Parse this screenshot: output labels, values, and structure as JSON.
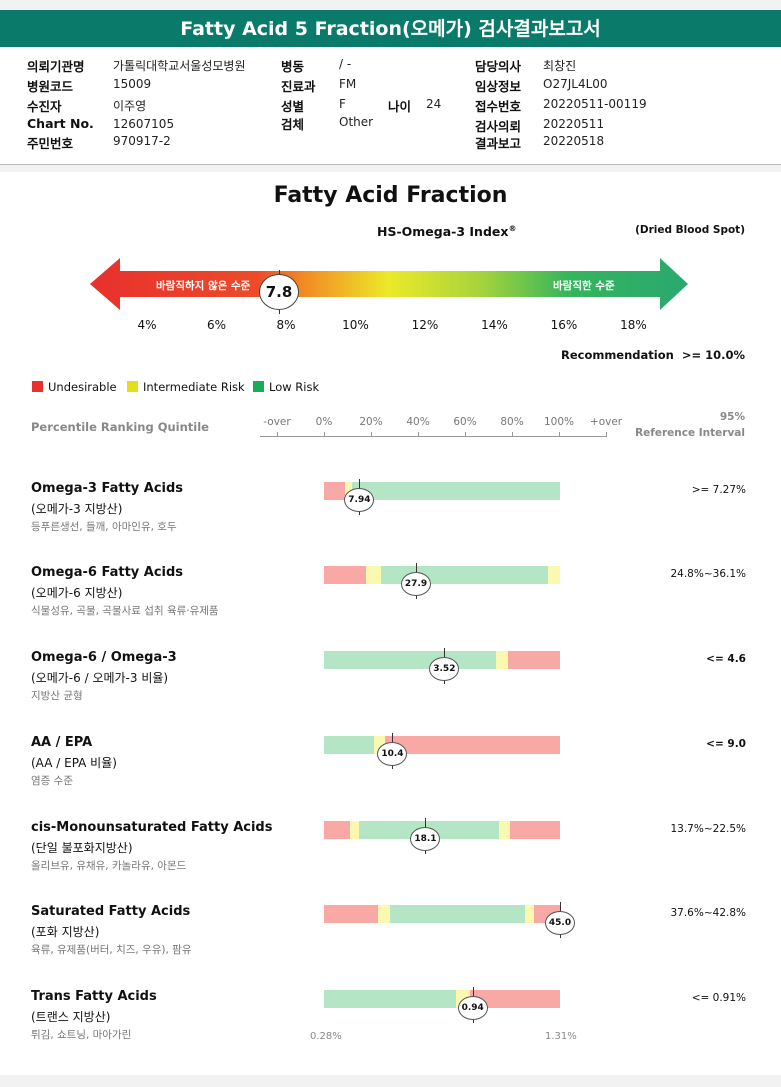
{
  "header": {
    "title": "Fatty Acid 5 Fraction(오메가) 검사결과보고서"
  },
  "info": [
    {
      "label": "의뢰기관명",
      "value": "가톨릭대학교서울성모병원"
    },
    {
      "label": "병원코드",
      "value": "15009"
    },
    {
      "label": "수진자",
      "value": "이주영"
    },
    {
      "label": "Chart No.",
      "value": "12607105"
    },
    {
      "label": "주민번호",
      "value": "970917-2"
    },
    {
      "label": "병동",
      "value": "/ -"
    },
    {
      "label": "진료과",
      "value": "FM"
    },
    {
      "label": "성별",
      "value": "F"
    },
    {
      "label": "나이",
      "value": "24"
    },
    {
      "label": "검체",
      "value": "Other"
    },
    {
      "label": "담당의사",
      "value": "최창진"
    },
    {
      "label": "임상정보",
      "value": "O27JL4L00"
    },
    {
      "label": "접수번호",
      "value": "20220511-00119"
    },
    {
      "label": "검사의뢰",
      "value": "20220511"
    },
    {
      "label": "결과보고",
      "value": "20220518"
    }
  ],
  "section": {
    "title": "Fatty Acid Fraction",
    "index_name": "HS-Omega-3 Index",
    "index_mark": "®",
    "sample_type": "(Dried Blood Spot)",
    "arrow_left_label": "바람직하지 않은 수준",
    "arrow_right_label": "바람직한 수준",
    "index_value": "7.8",
    "index_value_num": 7.8,
    "ticks": [
      "4%",
      "6%",
      "8%",
      "10%",
      "12%",
      "14%",
      "16%",
      "18%"
    ],
    "recommendation_label": "Recommendation",
    "recommendation_value": ">= 10.0%"
  },
  "legend": [
    {
      "label": "Undesirable",
      "color": "#e8302c"
    },
    {
      "label": "Intermediate Risk",
      "color": "#e3e01a"
    },
    {
      "label": "Low Risk",
      "color": "#1aab57"
    }
  ],
  "quintile": {
    "label": "Percentile Ranking Quintile",
    "ticks": [
      "-over",
      "0%",
      "20%",
      "40%",
      "60%",
      "80%",
      "100%",
      "+over"
    ],
    "ref_header_1": "95%",
    "ref_header_2": "Reference Interval"
  },
  "colors": {
    "red": "#f8a9a6",
    "yellow": "#fbf8b0",
    "green": "#b4e6c6",
    "teal": "#0a7b6b"
  },
  "results": [
    {
      "name": "Omega-3 Fatty Acids",
      "sub": "(오메가-3 지방산)",
      "food": "등푸른생선, 들깨, 아마인유, 호두",
      "value": "7.94",
      "value_pct": 15,
      "ref": ">= 7.27%",
      "ref_bold": false,
      "segments": [
        [
          "red",
          0,
          9
        ],
        [
          "yellow",
          9,
          12
        ],
        [
          "green",
          12,
          100
        ]
      ]
    },
    {
      "name": "Omega-6 Fatty Acids",
      "sub": "(오메가-6 지방산)",
      "food": "식물성유, 곡물, 곡물사료 섭취 육류·유제품",
      "value": "27.9",
      "value_pct": 39,
      "ref": "24.8%~36.1%",
      "ref_bold": false,
      "segments": [
        [
          "red",
          0,
          18
        ],
        [
          "yellow",
          18,
          24
        ],
        [
          "green",
          24,
          95
        ],
        [
          "yellow",
          95,
          100
        ]
      ]
    },
    {
      "name": "Omega-6 / Omega-3",
      "sub": "(오메가-6 / 오메가-3 비율)",
      "food": "지방산 균형",
      "value": "3.52",
      "value_pct": 51,
      "ref": "<= 4.6",
      "ref_bold": true,
      "segments": [
        [
          "green",
          0,
          73
        ],
        [
          "yellow",
          73,
          78
        ],
        [
          "red",
          78,
          100
        ]
      ]
    },
    {
      "name": "AA / EPA",
      "sub": "(AA / EPA 비율)",
      "food": "염증 수준",
      "value": "10.4",
      "value_pct": 29,
      "ref": "<= 9.0",
      "ref_bold": true,
      "segments": [
        [
          "green",
          0,
          21
        ],
        [
          "yellow",
          21,
          26
        ],
        [
          "red",
          26,
          100
        ]
      ]
    },
    {
      "name": "cis-Monounsaturated Fatty Acids",
      "sub": "(단일 불포화지방산)",
      "food": "올리브유, 유채유, 카놀라유, 아몬드",
      "value": "18.1",
      "value_pct": 43,
      "ref": "13.7%~22.5%",
      "ref_bold": false,
      "segments": [
        [
          "red",
          0,
          11
        ],
        [
          "yellow",
          11,
          15
        ],
        [
          "green",
          15,
          74
        ],
        [
          "yellow",
          74,
          79
        ],
        [
          "red",
          79,
          100
        ]
      ]
    },
    {
      "name": "Saturated Fatty Acids",
      "sub": "(포화 지방산)",
      "food": "육류, 유제품(버터, 치즈, 우유), 팜유",
      "value": "45.0",
      "value_pct": 100,
      "ref": "37.6%~42.8%",
      "ref_bold": false,
      "segments": [
        [
          "red",
          0,
          23
        ],
        [
          "yellow",
          23,
          28
        ],
        [
          "green",
          28,
          85
        ],
        [
          "yellow",
          85,
          89
        ],
        [
          "red",
          89,
          100
        ]
      ]
    },
    {
      "name": "Trans Fatty Acids",
      "sub": "(트랜스 지방산)",
      "food": "튀김, 쇼트닝, 마아가린",
      "value": "0.94",
      "value_pct": 63,
      "ref": "<= 0.91%",
      "ref_bold": false,
      "segments": [
        [
          "green",
          0,
          56
        ],
        [
          "yellow",
          56,
          62
        ],
        [
          "red",
          62,
          100
        ]
      ]
    }
  ],
  "trans_scale": {
    "min": "0.28%",
    "max": "1.31%"
  }
}
